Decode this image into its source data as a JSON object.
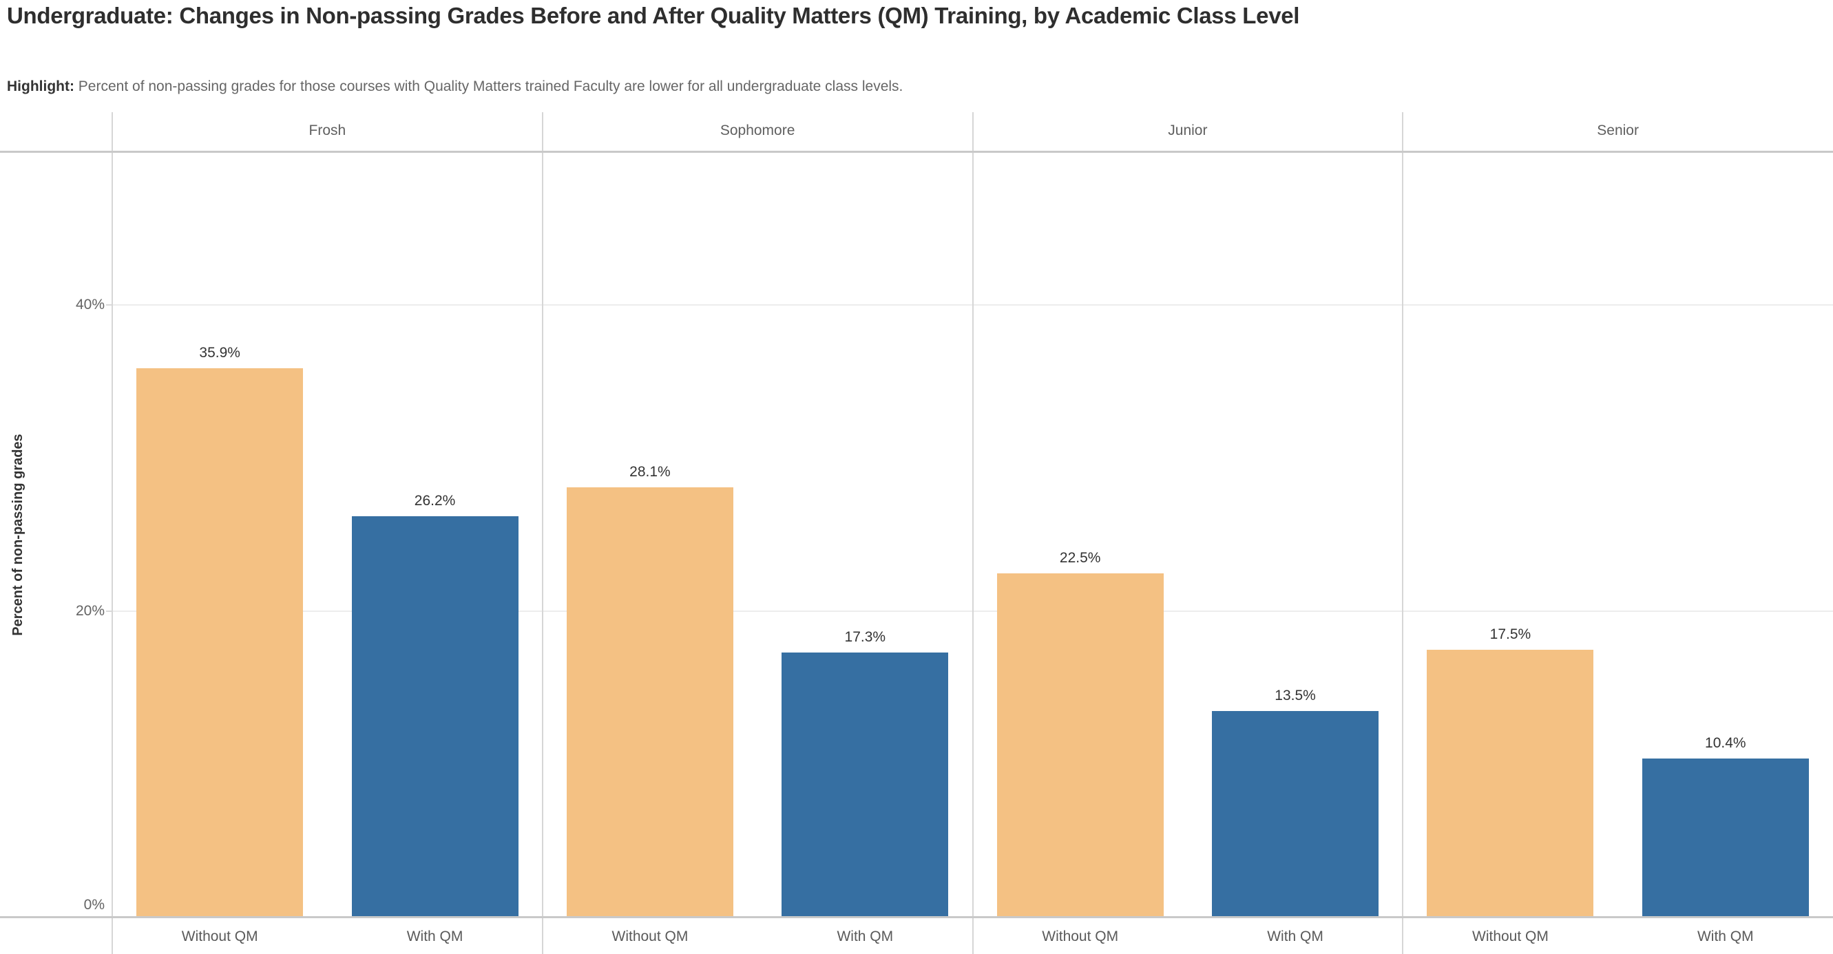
{
  "title": "Undergraduate: Changes in Non-passing Grades Before and After Quality Matters (QM) Training, by Academic Class Level",
  "subtitle": {
    "prefix": "Highlight:",
    "text": " Percent of non-passing grades for those courses with Quality Matters trained Faculty are lower for all undergraduate class levels."
  },
  "chart_data": {
    "type": "bar",
    "title": "Undergraduate: Changes in Non-passing Grades Before and After Quality Matters (QM) Training, by Academic Class Level",
    "ylabel": "Percent of non-passing grades",
    "ylim": [
      0,
      50
    ],
    "grid": true,
    "legend": "none",
    "yticks": [
      {
        "value": 0,
        "label": "0%"
      },
      {
        "value": 20,
        "label": "20%"
      },
      {
        "value": 40,
        "label": "40%"
      }
    ],
    "categories": [
      "Without QM",
      "With QM"
    ],
    "colors": {
      "without_qm": "#f4c183",
      "with_qm": "#366fa2"
    },
    "panels": [
      {
        "label": "Frosh",
        "bars": [
          {
            "category": "Without QM",
            "value": 35.9,
            "label": "35.9%",
            "series": "without_qm"
          },
          {
            "category": "With QM",
            "value": 26.2,
            "label": "26.2%",
            "series": "with_qm"
          }
        ]
      },
      {
        "label": "Sophomore",
        "bars": [
          {
            "category": "Without QM",
            "value": 28.1,
            "label": "28.1%",
            "series": "without_qm"
          },
          {
            "category": "With QM",
            "value": 17.3,
            "label": "17.3%",
            "series": "with_qm"
          }
        ]
      },
      {
        "label": "Junior",
        "bars": [
          {
            "category": "Without QM",
            "value": 22.5,
            "label": "22.5%",
            "series": "without_qm"
          },
          {
            "category": "With QM",
            "value": 13.5,
            "label": "13.5%",
            "series": "with_qm"
          }
        ]
      },
      {
        "label": "Senior",
        "bars": [
          {
            "category": "Without QM",
            "value": 17.5,
            "label": "17.5%",
            "series": "without_qm"
          },
          {
            "category": "With QM",
            "value": 10.4,
            "label": "10.4%",
            "series": "with_qm"
          }
        ]
      }
    ]
  }
}
